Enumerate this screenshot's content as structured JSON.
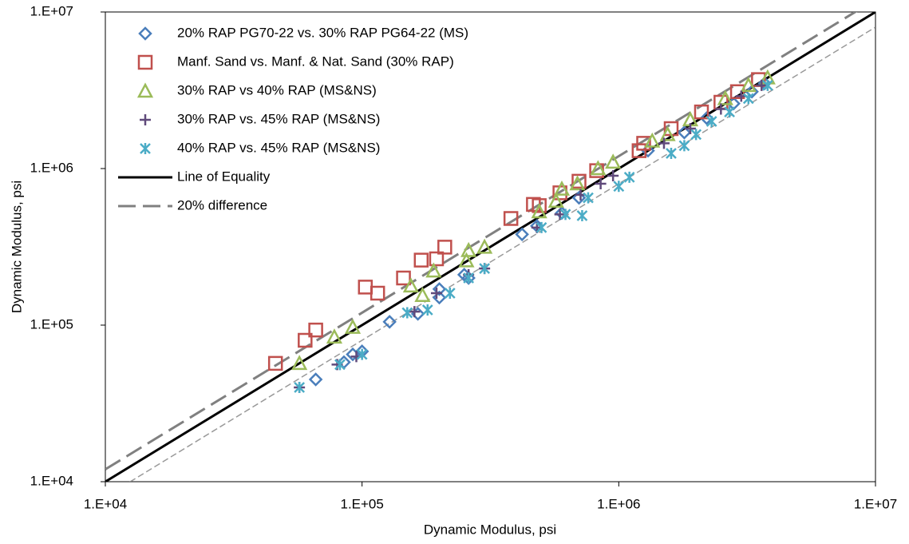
{
  "chart_data": {
    "type": "scatter",
    "x_label": "Dynamic Modulus, psi",
    "y_label": "Dynamic Modulus, psi",
    "log_x": true,
    "log_y": true,
    "grid": false,
    "legend": "upper left",
    "xlim": [
      10000,
      10000000
    ],
    "ylim": [
      10000,
      10000000
    ],
    "xticks": [
      {
        "value": 10000,
        "label": "1.E+04"
      },
      {
        "value": 100000,
        "label": "1.E+05"
      },
      {
        "value": 1000000,
        "label": "1.E+06"
      },
      {
        "value": 10000000,
        "label": "1.E+07"
      }
    ],
    "yticks": [
      {
        "value": 10000,
        "label": "1.E+04"
      },
      {
        "value": 100000,
        "label": "1.E+05"
      },
      {
        "value": 1000000,
        "label": "1.E+06"
      },
      {
        "value": 10000000,
        "label": "1.E+07"
      }
    ],
    "series": [
      {
        "name": "20% RAP PG70-22 vs. 30% RAP PG64-22 (MS)",
        "color": "#4a7ebb",
        "marker": "diamond",
        "x": [
          66000,
          85000,
          92000,
          100000,
          128000,
          165000,
          200000,
          200000,
          250000,
          260000,
          420000,
          480000,
          600000,
          700000,
          1300000,
          1800000,
          2200000,
          2800000,
          3300000,
          3700000
        ],
        "y": [
          45000,
          58000,
          65000,
          68000,
          105000,
          118000,
          150000,
          170000,
          210000,
          200000,
          380000,
          430000,
          520000,
          650000,
          1300000,
          1700000,
          2100000,
          2600000,
          3100000,
          3500000
        ]
      },
      {
        "name": "Manf. Sand vs. Manf. & Nat. Sand (30% RAP)",
        "color": "#c0504d",
        "marker": "square",
        "x": [
          46000,
          60000,
          66000,
          103000,
          115000,
          145000,
          170000,
          195000,
          210000,
          380000,
          465000,
          490000,
          590000,
          700000,
          820000,
          1200000,
          1250000,
          1600000,
          2100000,
          2500000,
          2900000,
          3500000
        ],
        "y": [
          57000,
          80000,
          93000,
          175000,
          160000,
          200000,
          260000,
          265000,
          315000,
          480000,
          590000,
          580000,
          700000,
          830000,
          970000,
          1300000,
          1450000,
          1800000,
          2300000,
          2650000,
          3100000,
          3700000
        ]
      },
      {
        "name": "30% RAP vs 40% RAP (MS&NS)",
        "color": "#9bbb59",
        "marker": "triangle",
        "x": [
          57000,
          78000,
          92000,
          155000,
          172000,
          190000,
          255000,
          260000,
          300000,
          490000,
          570000,
          600000,
          690000,
          830000,
          950000,
          1350000,
          1550000,
          1900000,
          2600000,
          3200000,
          3800000
        ],
        "y": [
          57000,
          84000,
          97000,
          178000,
          155000,
          222000,
          258000,
          300000,
          315000,
          530000,
          620000,
          740000,
          800000,
          1000000,
          1100000,
          1500000,
          1650000,
          2050000,
          2800000,
          3400000,
          3800000
        ]
      },
      {
        "name": "30% RAP vs. 45% RAP (MS&NS)",
        "color": "#604a7b",
        "marker": "plus",
        "x": [
          57000,
          80000,
          95000,
          160000,
          195000,
          260000,
          300000,
          480000,
          590000,
          710000,
          850000,
          950000,
          1500000,
          1900000,
          2500000,
          3000000,
          3600000
        ],
        "y": [
          40000,
          56000,
          63000,
          122000,
          160000,
          210000,
          230000,
          420000,
          510000,
          680000,
          800000,
          900000,
          1450000,
          1800000,
          2400000,
          2900000,
          3400000
        ]
      },
      {
        "name": "40% RAP vs. 45% RAP (MS&NS)",
        "color": "#4bacc6",
        "marker": "star",
        "x": [
          57000,
          82000,
          100000,
          150000,
          180000,
          220000,
          260000,
          300000,
          500000,
          620000,
          720000,
          760000,
          1000000,
          1100000,
          1600000,
          1800000,
          2000000,
          2300000,
          2700000,
          3200000,
          3800000
        ],
        "y": [
          40000,
          56000,
          65000,
          120000,
          125000,
          160000,
          200000,
          230000,
          420000,
          510000,
          500000,
          650000,
          770000,
          880000,
          1250000,
          1400000,
          1650000,
          2000000,
          2300000,
          2800000,
          3400000
        ]
      }
    ],
    "reference_lines": [
      {
        "name": "Line of Equality",
        "color": "#000000",
        "factors": [
          1
        ]
      },
      {
        "name": "20% difference",
        "color": "#808080",
        "factors": [
          1.2,
          0.8
        ]
      }
    ]
  }
}
